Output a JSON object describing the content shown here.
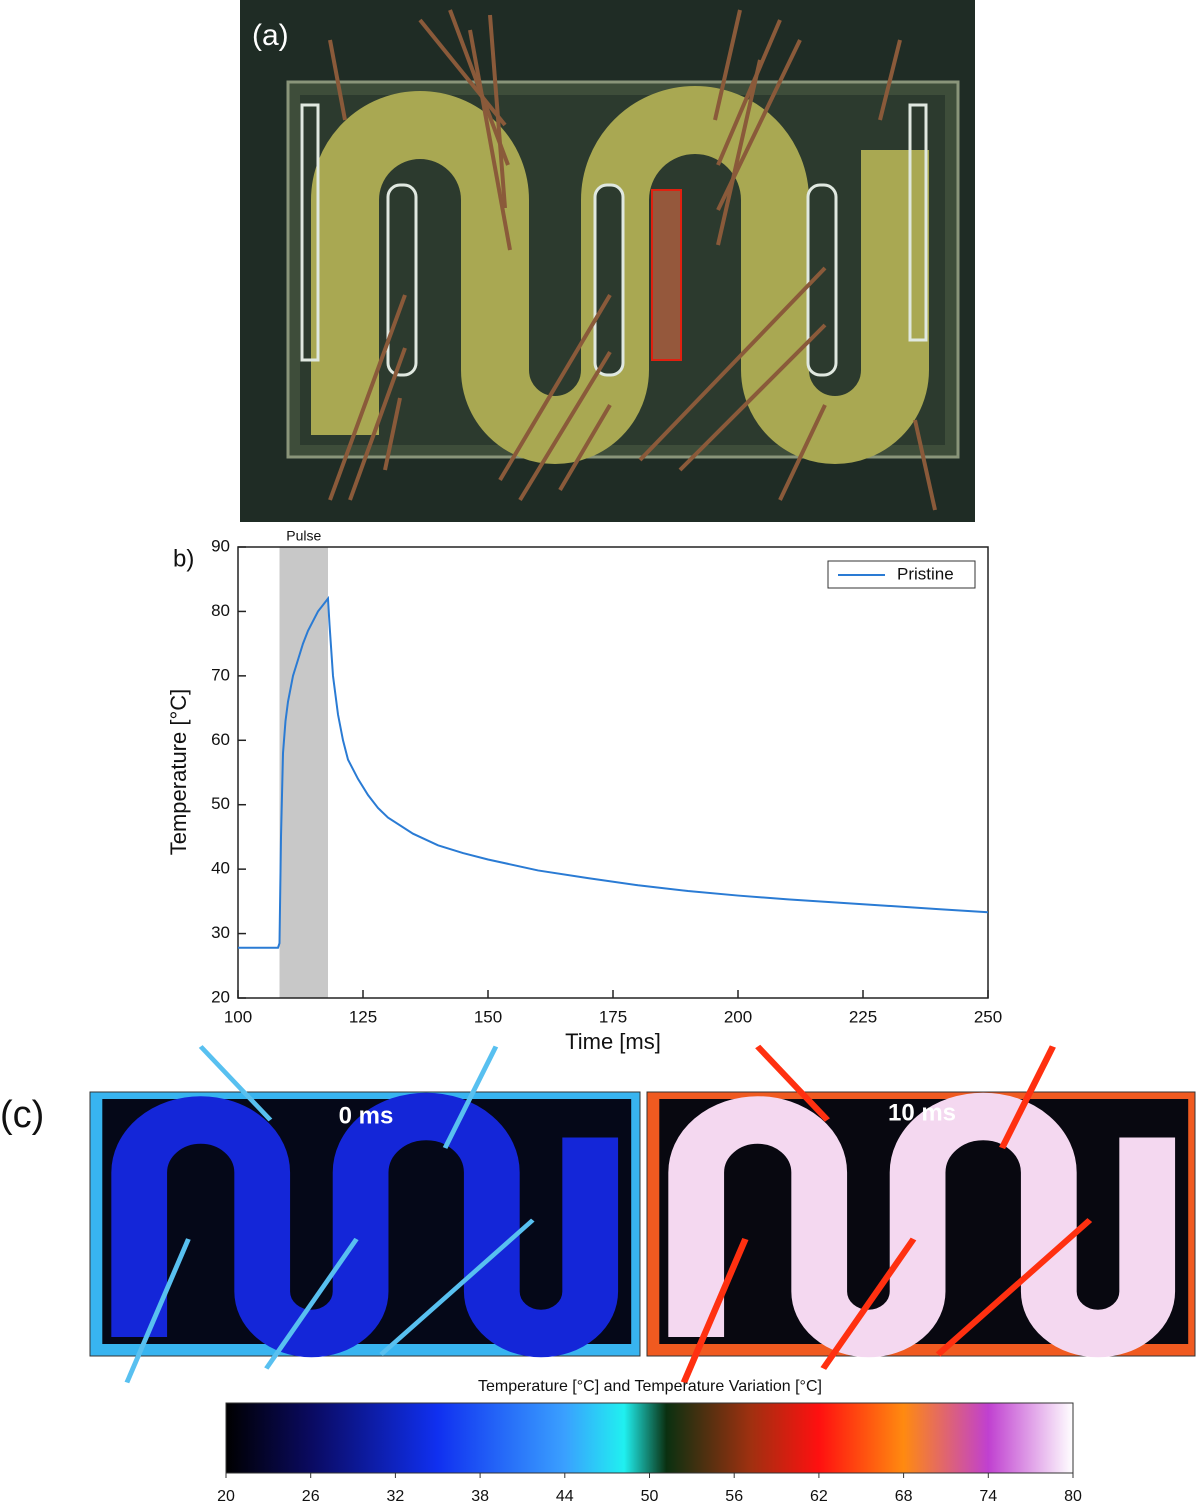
{
  "panels": {
    "a": {
      "label": "(a)"
    },
    "c": {
      "label": "(c)",
      "frames": [
        "0 ms",
        "10 ms"
      ]
    }
  },
  "chart_data": {
    "type": "line",
    "panel_label": "b)",
    "x_label": "Time [ms]",
    "y_label": "Temperature [°C]",
    "x": [
      100,
      108,
      108.3,
      108.6,
      109,
      109.5,
      110,
      111,
      112,
      113,
      114,
      115,
      116,
      117,
      118,
      118.3,
      119,
      120,
      121,
      122,
      124,
      126,
      128,
      130,
      135,
      140,
      145,
      150,
      160,
      170,
      180,
      190,
      200,
      210,
      220,
      230,
      240,
      250
    ],
    "series": [
      {
        "name": "Pristine",
        "color": "#2a7bd4",
        "values": [
          27.8,
          27.8,
          28.5,
          45,
          58,
          63,
          66,
          70,
          72.5,
          75,
          77,
          78.5,
          80,
          81,
          82,
          78,
          70,
          64,
          60,
          57,
          54,
          51.5,
          49.5,
          48,
          45.5,
          43.7,
          42.5,
          41.5,
          39.8,
          38.6,
          37.5,
          36.6,
          35.9,
          35.3,
          34.8,
          34.3,
          33.8,
          33.3
        ]
      }
    ],
    "pulse": {
      "label": "Pulse",
      "x": [
        108.3,
        118
      ],
      "color": "#c8c8c8"
    },
    "xlim": [
      100,
      250
    ],
    "xticks": [
      100,
      125,
      150,
      175,
      200,
      225,
      250
    ],
    "ylim": [
      20,
      90
    ],
    "yticks": [
      20,
      30,
      40,
      50,
      60,
      70,
      80,
      90
    ],
    "legend": "top-right"
  },
  "colorbar": {
    "title": "Temperature [°C] and Temperature Variation [°C]",
    "lim": [
      20,
      80
    ],
    "ticks": [
      20,
      26,
      32,
      38,
      44,
      50,
      56,
      62,
      68,
      74,
      80
    ]
  }
}
